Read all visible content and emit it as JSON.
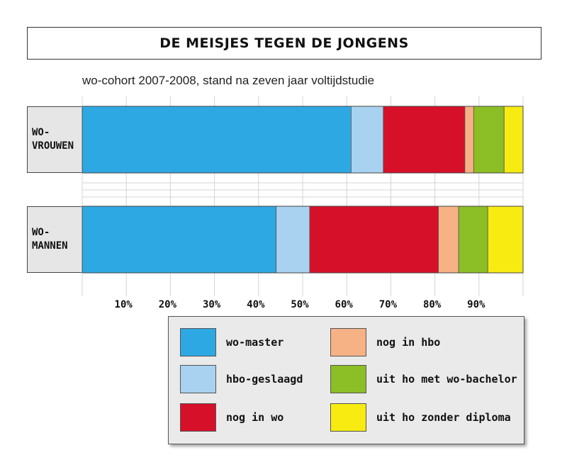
{
  "chart_data": {
    "type": "bar",
    "orientation": "horizontal",
    "stacked": true,
    "title": "DE MEISJES TEGEN DE JONGENS",
    "subtitle": "wo-cohort 2007-2008, stand na zeven jaar voltijdstudie",
    "categories": [
      "WO-\nVROUWEN",
      "WO-\nMANNEN"
    ],
    "series": [
      {
        "name": "wo-master",
        "color": "#2EA8E2",
        "values": [
          61.0,
          44.0
        ]
      },
      {
        "name": "hbo-geslaagd",
        "color": "#A8D2F0",
        "values": [
          7.3,
          7.6
        ]
      },
      {
        "name": "nog in wo",
        "color": "#D7102A",
        "values": [
          18.5,
          29.2
        ]
      },
      {
        "name": "nog in hbo",
        "color": "#F6B184",
        "values": [
          2.0,
          4.6
        ]
      },
      {
        "name": "uit ho met wo-bachelor",
        "color": "#8CBE25",
        "values": [
          6.9,
          6.6
        ]
      },
      {
        "name": "uit ho zonder diploma",
        "color": "#F7EB12",
        "values": [
          4.3,
          8.0
        ]
      }
    ],
    "xlim": [
      0,
      100
    ],
    "xticks": [
      10,
      20,
      30,
      40,
      50,
      60,
      70,
      80,
      90
    ],
    "xtick_labels": [
      "10%",
      "20%",
      "30%",
      "40%",
      "50%",
      "60%",
      "70%",
      "80%",
      "90%"
    ],
    "grid": true,
    "legend_position": "bottom-right"
  }
}
